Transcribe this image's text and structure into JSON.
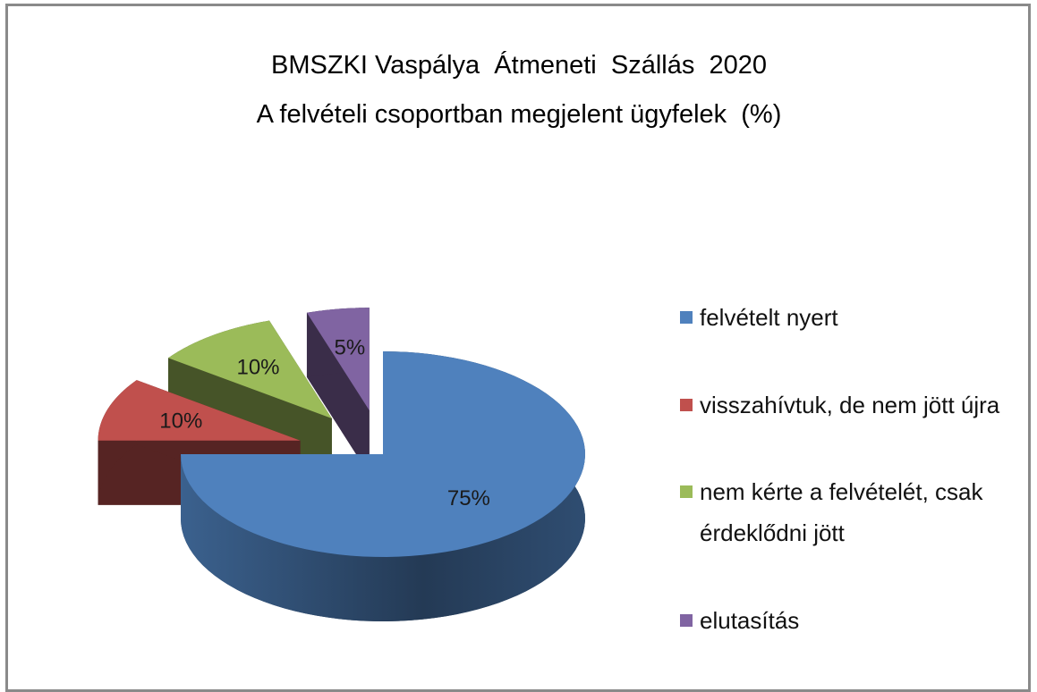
{
  "chart_data": {
    "type": "pie",
    "title": "BMSZKI Vaspálya  Átmeneti  Szállás  2020",
    "subtitle": "A felvételi csoportban megjelent ügyfelek  (%)",
    "categories": [
      "felvételt nyert",
      "visszahívtuk, de nem jött újra",
      "nem kérte a felvételét, csak érdeklődni jött",
      "elutasítás"
    ],
    "values": [
      75,
      10,
      10,
      5
    ],
    "value_labels": [
      "75%",
      "10%",
      "10%",
      "5%"
    ],
    "colors": [
      "#4f81bd",
      "#c0504d",
      "#9bbb59",
      "#8064a2"
    ],
    "legend": "right"
  }
}
